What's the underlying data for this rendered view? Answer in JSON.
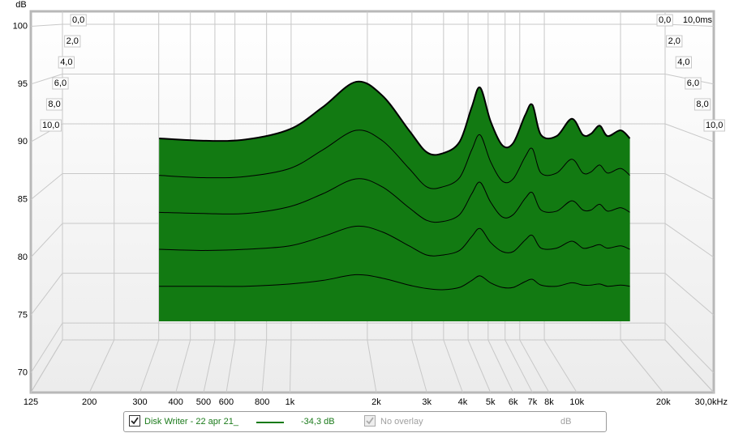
{
  "chart_data": {
    "type": "waterfall",
    "y_axis_label": "dB",
    "ylim": [
      68.3,
      101.3
    ],
    "yticks": [
      70,
      75,
      80,
      85,
      90,
      95,
      100
    ],
    "xlim": [
      125,
      30000
    ],
    "log_x": true,
    "xticks": [
      125,
      200,
      300,
      400,
      500,
      600,
      800,
      {
        "value": 1000,
        "label": "1k"
      },
      {
        "value": 2000,
        "label": "2k"
      },
      {
        "value": 3000,
        "label": "3k"
      },
      {
        "value": 4000,
        "label": "4k"
      },
      {
        "value": 5000,
        "label": "5k"
      },
      {
        "value": 6000,
        "label": "6k"
      },
      {
        "value": 7000,
        "label": "7k"
      },
      {
        "value": 8000,
        "label": "8k"
      },
      {
        "value": 10000,
        "label": "10k"
      },
      {
        "value": 20000,
        "label": "20k"
      },
      {
        "value": 30000,
        "label": "30,0kHz"
      }
    ],
    "time_ticks": [
      {
        "value": 0,
        "label": "0,0"
      },
      {
        "value": 2,
        "label": "2,0"
      },
      {
        "value": 4,
        "label": "4,0"
      },
      {
        "value": 6,
        "label": "6,0"
      },
      {
        "value": 8,
        "label": "8,0"
      },
      {
        "value": 10,
        "label": "10,0"
      }
    ],
    "time_axis_label": "10,0ms",
    "grid": true,
    "x": [
      350,
      500,
      700,
      1000,
      1300,
      1700,
      2100,
      2600,
      3000,
      3400,
      3900,
      4300,
      4600,
      5000,
      5500,
      6000,
      6600,
      7000,
      7500,
      8500,
      9600,
      10500,
      11200,
      12000,
      12800,
      14200,
      15300
    ],
    "series": [
      {
        "name": "Disk Writer - 22 apr 21_",
        "color": "#127a12",
        "slices": [
          [
            90.3,
            90.1,
            90.2,
            91.1,
            93.0,
            95.2,
            94.0,
            91.0,
            89.1,
            89.0,
            90.0,
            93.0,
            94.7,
            91.8,
            89.7,
            89.9,
            92.3,
            93.2,
            90.6,
            90.5,
            92.0,
            90.6,
            90.7,
            91.4,
            90.5,
            91.0,
            90.3
          ],
          [
            87.1,
            86.9,
            87.0,
            87.7,
            89.3,
            91.0,
            90.1,
            87.7,
            86.1,
            86.1,
            86.9,
            89.3,
            90.6,
            88.3,
            86.6,
            86.8,
            88.7,
            89.4,
            87.3,
            87.3,
            88.5,
            87.3,
            87.4,
            88.0,
            87.3,
            87.7,
            87.1
          ],
          [
            83.9,
            83.8,
            83.8,
            84.4,
            85.5,
            86.8,
            86.1,
            84.3,
            83.2,
            83.1,
            83.7,
            85.5,
            86.5,
            84.8,
            83.5,
            83.7,
            85.1,
            85.6,
            84.1,
            84.0,
            84.9,
            84.1,
            84.1,
            84.6,
            84.0,
            84.3,
            83.9
          ],
          [
            80.7,
            80.6,
            80.7,
            81.0,
            81.8,
            82.7,
            82.2,
            81.0,
            80.2,
            80.2,
            80.6,
            81.8,
            82.5,
            81.3,
            80.5,
            80.5,
            81.5,
            81.9,
            80.8,
            80.8,
            81.4,
            80.8,
            80.9,
            81.1,
            80.8,
            81.0,
            80.7
          ],
          [
            77.5,
            77.5,
            77.5,
            77.7,
            78.0,
            78.5,
            78.2,
            77.6,
            77.3,
            77.2,
            77.4,
            78.0,
            78.4,
            77.8,
            77.4,
            77.4,
            77.9,
            78.1,
            77.6,
            77.5,
            77.8,
            77.6,
            77.6,
            77.7,
            77.5,
            77.6,
            77.5
          ]
        ]
      }
    ],
    "legend": {
      "readout": "-34,3 dB",
      "overlay": "No overlay",
      "overlay_unit": "dB"
    }
  }
}
